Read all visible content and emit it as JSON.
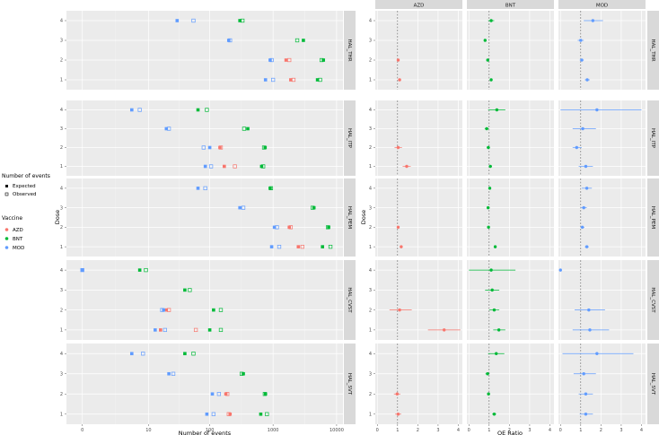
{
  "colors": {
    "AZD": "#f8766d",
    "BNT": "#00ba38",
    "MOD": "#619cff",
    "panel_bg": "#ebebeb",
    "strip_bg": "#d9d9d9",
    "grid": "#ffffff"
  },
  "legend": {
    "events_title": "Number of events",
    "events_items": [
      "Expected",
      "Observed"
    ],
    "vaccine_title": "Vaccine",
    "vaccine_items": [
      "AZD",
      "BNT",
      "MOD"
    ]
  },
  "chart_data": [
    {
      "type": "scatter",
      "xlabel": "Number of events",
      "ylabel": "Dose",
      "x_scale": "log10(x+1)",
      "x_ticks": [
        0,
        10,
        100,
        1000,
        10000
      ],
      "x_tick_labels": [
        "0",
        "10",
        "100",
        "1000",
        "10000"
      ],
      "y_ticks": [
        1,
        2,
        3,
        4
      ],
      "facets": [
        "HAL_THR",
        "HAL_ITP",
        "HAL_PEM",
        "HAL_CVST",
        "HAL_SVT"
      ],
      "series": [
        {
          "facet": "HAL_THR",
          "vaccine": "AZD",
          "expected": [
            1900,
            1600,
            null,
            null
          ],
          "observed": [
            2100,
            1800,
            null,
            null
          ]
        },
        {
          "facet": "HAL_THR",
          "vaccine": "BNT",
          "expected": [
            5000,
            6200,
            3000,
            300
          ],
          "observed": [
            5500,
            5800,
            2400,
            330
          ]
        },
        {
          "facet": "HAL_THR",
          "vaccine": "MOD",
          "expected": [
            760,
            900,
            200,
            30
          ],
          "observed": [
            1000,
            950,
            210,
            55
          ]
        },
        {
          "facet": "HAL_ITP",
          "vaccine": "AZD",
          "expected": [
            170,
            145,
            null,
            null
          ],
          "observed": [
            250,
            150,
            null,
            null
          ]
        },
        {
          "facet": "HAL_ITP",
          "vaccine": "BNT",
          "expected": [
            660,
            750,
            400,
            65
          ],
          "observed": [
            700,
            720,
            350,
            90
          ]
        },
        {
          "facet": "HAL_ITP",
          "vaccine": "MOD",
          "expected": [
            85,
            100,
            20,
            5
          ],
          "observed": [
            105,
            80,
            22,
            7
          ]
        },
        {
          "facet": "HAL_PEM",
          "vaccine": "AZD",
          "expected": [
            2500,
            1800,
            null,
            null
          ],
          "observed": [
            2900,
            1900,
            null,
            null
          ]
        },
        {
          "facet": "HAL_PEM",
          "vaccine": "BNT",
          "expected": [
            6000,
            7500,
            4400,
            900
          ],
          "observed": [
            8000,
            7300,
            4200,
            930
          ]
        },
        {
          "facet": "HAL_PEM",
          "vaccine": "MOD",
          "expected": [
            950,
            1050,
            300,
            65
          ],
          "observed": [
            1250,
            1150,
            340,
            85
          ]
        },
        {
          "facet": "HAL_CVST",
          "vaccine": "AZD",
          "expected": [
            16,
            20,
            null,
            null
          ],
          "observed": [
            60,
            22,
            null,
            null
          ]
        },
        {
          "facet": "HAL_CVST",
          "vaccine": "BNT",
          "expected": [
            100,
            115,
            40,
            7
          ],
          "observed": [
            150,
            150,
            48,
            9
          ]
        },
        {
          "facet": "HAL_CVST",
          "vaccine": "MOD",
          "expected": [
            13,
            18,
            null,
            0
          ],
          "observed": [
            19,
            17,
            null,
            0
          ]
        },
        {
          "facet": "HAL_SVT",
          "vaccine": "AZD",
          "expected": [
            210,
            180,
            null,
            null
          ],
          "observed": [
            200,
            190,
            null,
            null
          ]
        },
        {
          "facet": "HAL_SVT",
          "vaccine": "BNT",
          "expected": [
            640,
            760,
            340,
            40
          ],
          "observed": [
            800,
            740,
            320,
            55
          ]
        },
        {
          "facet": "HAL_SVT",
          "vaccine": "MOD",
          "expected": [
            90,
            110,
            22,
            5
          ],
          "observed": [
            115,
            140,
            26,
            8
          ]
        }
      ]
    },
    {
      "type": "scatter",
      "xlabel": "OE Ratio",
      "ylabel": "Dose",
      "xlim": [
        0,
        4.2
      ],
      "x_ticks": [
        0,
        1,
        2,
        3,
        4
      ],
      "y_ticks": [
        1,
        2,
        3,
        4
      ],
      "reference_line": 1,
      "column_facets": [
        "AZD",
        "BNT",
        "MOD"
      ],
      "row_facets": [
        "HAL_THR",
        "HAL_ITP",
        "HAL_PEM",
        "HAL_CVST",
        "HAL_SVT"
      ],
      "points": [
        {
          "row": "HAL_THR",
          "vaccine": "AZD",
          "dose": 1,
          "oe": 1.1,
          "lo": 1.03,
          "hi": 1.17
        },
        {
          "row": "HAL_THR",
          "vaccine": "AZD",
          "dose": 2,
          "oe": 1.03,
          "lo": 0.97,
          "hi": 1.1
        },
        {
          "row": "HAL_THR",
          "vaccine": "BNT",
          "dose": 1,
          "oe": 1.1,
          "lo": 1.05,
          "hi": 1.15
        },
        {
          "row": "HAL_THR",
          "vaccine": "BNT",
          "dose": 2,
          "oe": 0.93,
          "lo": 0.88,
          "hi": 0.98
        },
        {
          "row": "HAL_THR",
          "vaccine": "BNT",
          "dose": 3,
          "oe": 0.8,
          "lo": 0.76,
          "hi": 0.84
        },
        {
          "row": "HAL_THR",
          "vaccine": "BNT",
          "dose": 4,
          "oe": 1.1,
          "lo": 0.95,
          "hi": 1.25
        },
        {
          "row": "HAL_THR",
          "vaccine": "MOD",
          "dose": 1,
          "oe": 1.32,
          "lo": 1.2,
          "hi": 1.45
        },
        {
          "row": "HAL_THR",
          "vaccine": "MOD",
          "dose": 2,
          "oe": 1.05,
          "lo": 0.95,
          "hi": 1.15
        },
        {
          "row": "HAL_THR",
          "vaccine": "MOD",
          "dose": 3,
          "oe": 1.0,
          "lo": 0.85,
          "hi": 1.15
        },
        {
          "row": "HAL_THR",
          "vaccine": "MOD",
          "dose": 4,
          "oe": 1.6,
          "lo": 1.15,
          "hi": 2.1
        },
        {
          "row": "HAL_ITP",
          "vaccine": "AZD",
          "dose": 1,
          "oe": 1.45,
          "lo": 1.25,
          "hi": 1.65
        },
        {
          "row": "HAL_ITP",
          "vaccine": "AZD",
          "dose": 2,
          "oe": 1.03,
          "lo": 0.85,
          "hi": 1.22
        },
        {
          "row": "HAL_ITP",
          "vaccine": "BNT",
          "dose": 1,
          "oe": 1.06,
          "lo": 0.98,
          "hi": 1.14
        },
        {
          "row": "HAL_ITP",
          "vaccine": "BNT",
          "dose": 2,
          "oe": 0.96,
          "lo": 0.88,
          "hi": 1.04
        },
        {
          "row": "HAL_ITP",
          "vaccine": "BNT",
          "dose": 3,
          "oe": 0.88,
          "lo": 0.78,
          "hi": 0.98
        },
        {
          "row": "HAL_ITP",
          "vaccine": "BNT",
          "dose": 4,
          "oe": 1.38,
          "lo": 0.95,
          "hi": 1.8
        },
        {
          "row": "HAL_ITP",
          "vaccine": "MOD",
          "dose": 1,
          "oe": 1.25,
          "lo": 0.9,
          "hi": 1.6
        },
        {
          "row": "HAL_ITP",
          "vaccine": "MOD",
          "dose": 2,
          "oe": 0.8,
          "lo": 0.6,
          "hi": 1.05
        },
        {
          "row": "HAL_ITP",
          "vaccine": "MOD",
          "dose": 3,
          "oe": 1.1,
          "lo": 0.6,
          "hi": 1.75
        },
        {
          "row": "HAL_ITP",
          "vaccine": "MOD",
          "dose": 4,
          "oe": 1.8,
          "lo": 0.0,
          "hi": 4.0
        },
        {
          "row": "HAL_PEM",
          "vaccine": "AZD",
          "dose": 1,
          "oe": 1.18,
          "lo": 1.12,
          "hi": 1.24
        },
        {
          "row": "HAL_PEM",
          "vaccine": "AZD",
          "dose": 2,
          "oe": 1.03,
          "lo": 0.98,
          "hi": 1.08
        },
        {
          "row": "HAL_PEM",
          "vaccine": "BNT",
          "dose": 1,
          "oe": 1.3,
          "lo": 1.25,
          "hi": 1.35
        },
        {
          "row": "HAL_PEM",
          "vaccine": "BNT",
          "dose": 2,
          "oe": 0.97,
          "lo": 0.93,
          "hi": 1.01
        },
        {
          "row": "HAL_PEM",
          "vaccine": "BNT",
          "dose": 3,
          "oe": 0.95,
          "lo": 0.91,
          "hi": 0.99
        },
        {
          "row": "HAL_PEM",
          "vaccine": "BNT",
          "dose": 4,
          "oe": 1.03,
          "lo": 0.97,
          "hi": 1.09
        },
        {
          "row": "HAL_PEM",
          "vaccine": "MOD",
          "dose": 1,
          "oe": 1.3,
          "lo": 1.2,
          "hi": 1.4
        },
        {
          "row": "HAL_PEM",
          "vaccine": "MOD",
          "dose": 2,
          "oe": 1.08,
          "lo": 0.98,
          "hi": 1.18
        },
        {
          "row": "HAL_PEM",
          "vaccine": "MOD",
          "dose": 3,
          "oe": 1.15,
          "lo": 1.0,
          "hi": 1.3
        },
        {
          "row": "HAL_PEM",
          "vaccine": "MOD",
          "dose": 4,
          "oe": 1.3,
          "lo": 1.05,
          "hi": 1.55
        },
        {
          "row": "HAL_CVST",
          "vaccine": "AZD",
          "dose": 1,
          "oe": 3.3,
          "lo": 2.5,
          "hi": 4.1
        },
        {
          "row": "HAL_CVST",
          "vaccine": "AZD",
          "dose": 2,
          "oe": 1.1,
          "lo": 0.6,
          "hi": 1.7
        },
        {
          "row": "HAL_CVST",
          "vaccine": "BNT",
          "dose": 1,
          "oe": 1.48,
          "lo": 1.2,
          "hi": 1.8
        },
        {
          "row": "HAL_CVST",
          "vaccine": "BNT",
          "dose": 2,
          "oe": 1.25,
          "lo": 1.0,
          "hi": 1.5
        },
        {
          "row": "HAL_CVST",
          "vaccine": "BNT",
          "dose": 3,
          "oe": 1.15,
          "lo": 0.8,
          "hi": 1.5
        },
        {
          "row": "HAL_CVST",
          "vaccine": "BNT",
          "dose": 4,
          "oe": 1.1,
          "lo": 0.0,
          "hi": 2.3
        },
        {
          "row": "HAL_CVST",
          "vaccine": "MOD",
          "dose": 1,
          "oe": 1.45,
          "lo": 0.6,
          "hi": 2.4
        },
        {
          "row": "HAL_CVST",
          "vaccine": "MOD",
          "dose": 2,
          "oe": 1.4,
          "lo": 0.7,
          "hi": 2.2
        },
        {
          "row": "HAL_CVST",
          "vaccine": "MOD",
          "dose": 4,
          "oe": 0.0,
          "lo": 0.0,
          "hi": 0.0
        },
        {
          "row": "HAL_SVT",
          "vaccine": "AZD",
          "dose": 1,
          "oe": 1.03,
          "lo": 0.88,
          "hi": 1.18
        },
        {
          "row": "HAL_SVT",
          "vaccine": "AZD",
          "dose": 2,
          "oe": 0.98,
          "lo": 0.82,
          "hi": 1.14
        },
        {
          "row": "HAL_SVT",
          "vaccine": "BNT",
          "dose": 1,
          "oe": 1.25,
          "lo": 1.15,
          "hi": 1.35
        },
        {
          "row": "HAL_SVT",
          "vaccine": "BNT",
          "dose": 2,
          "oe": 0.97,
          "lo": 0.9,
          "hi": 1.04
        },
        {
          "row": "HAL_SVT",
          "vaccine": "BNT",
          "dose": 3,
          "oe": 0.92,
          "lo": 0.82,
          "hi": 1.02
        },
        {
          "row": "HAL_SVT",
          "vaccine": "BNT",
          "dose": 4,
          "oe": 1.35,
          "lo": 0.95,
          "hi": 1.75
        },
        {
          "row": "HAL_SVT",
          "vaccine": "MOD",
          "dose": 1,
          "oe": 1.25,
          "lo": 0.95,
          "hi": 1.6
        },
        {
          "row": "HAL_SVT",
          "vaccine": "MOD",
          "dose": 2,
          "oe": 1.25,
          "lo": 0.9,
          "hi": 1.6
        },
        {
          "row": "HAL_SVT",
          "vaccine": "MOD",
          "dose": 3,
          "oe": 1.15,
          "lo": 0.65,
          "hi": 1.75
        },
        {
          "row": "HAL_SVT",
          "vaccine": "MOD",
          "dose": 4,
          "oe": 1.8,
          "lo": 0.1,
          "hi": 3.6
        }
      ]
    }
  ]
}
